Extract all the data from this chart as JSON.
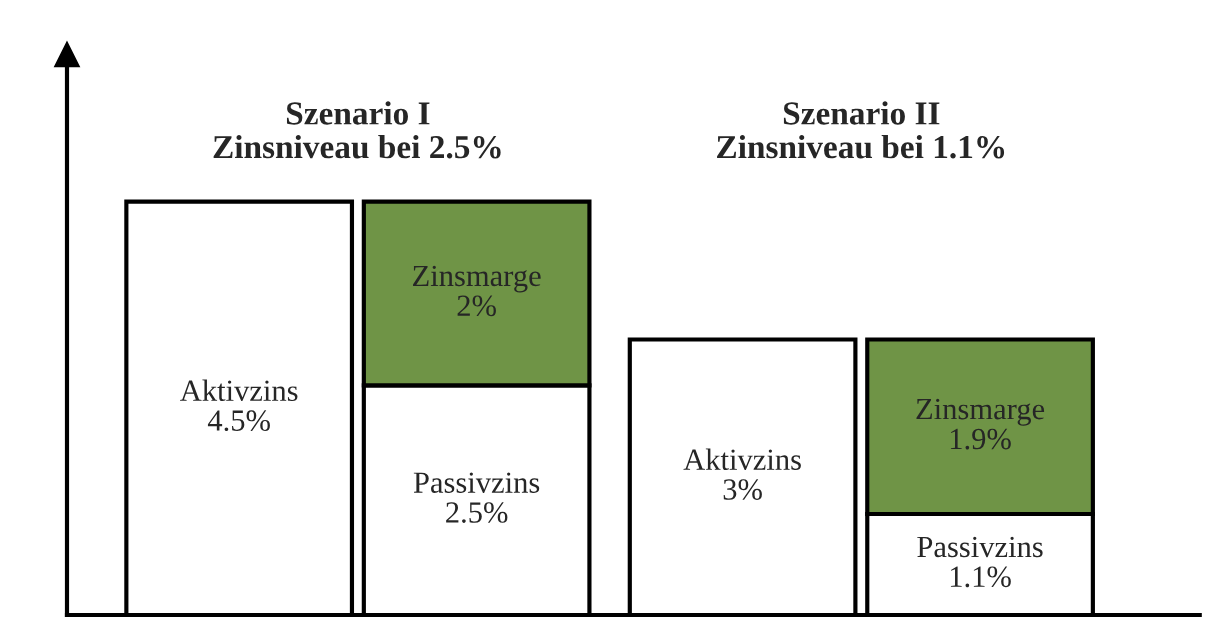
{
  "chart_data": {
    "type": "bar",
    "stacked": true,
    "categories": [
      null,
      null,
      null,
      null
    ],
    "series": [
      {
        "name": "Aktivzins",
        "color": "#ffffff",
        "values": [
          4.5,
          null,
          3,
          null
        ],
        "value_labels": [
          "4.5%",
          null,
          "3%",
          null
        ]
      },
      {
        "name": "Passivzins",
        "color": "#ffffff",
        "values": [
          null,
          2.5,
          null,
          1.1
        ],
        "value_labels": [
          null,
          "2.5%",
          null,
          "1.1%"
        ]
      },
      {
        "name": "Zinsmarge",
        "color": "#6f9446",
        "values": [
          null,
          2,
          null,
          1.9
        ],
        "value_labels": [
          null,
          "2%",
          null,
          "1.9%"
        ]
      }
    ],
    "annotations": [
      "Szenario I\nZinsniveau bei 2.5%",
      "Szenario II\nZinsniveau bei 1.1%"
    ],
    "ylim": [
      0,
      6.1
    ]
  }
}
